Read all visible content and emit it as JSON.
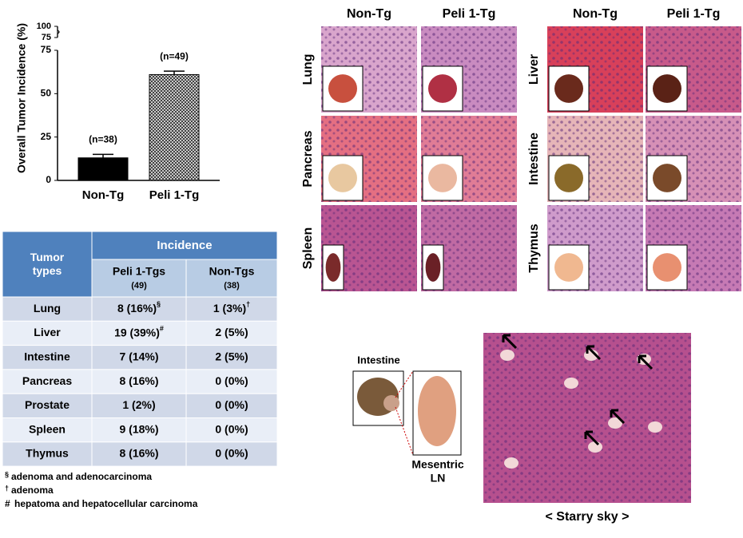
{
  "chart_data": {
    "type": "bar",
    "y_label": "Overall Tumor Incidence (%)",
    "categories": [
      "Non-Tg",
      "Peli 1-Tg"
    ],
    "values": [
      13,
      61
    ],
    "errors": [
      2,
      2
    ],
    "annotations": [
      "(n=38)",
      "(n=49)"
    ],
    "colors": [
      "#000000",
      "#555555"
    ],
    "ylim": [
      0,
      75
    ],
    "yticks": [
      0,
      25,
      50,
      75
    ],
    "break_ylim": [
      75,
      100
    ],
    "break_yticks": [
      75,
      100
    ]
  },
  "table": {
    "header": {
      "row_label": "Tumor types",
      "group": "Incidence",
      "columns": [
        {
          "name": "Peli 1-Tgs",
          "n": "(49)"
        },
        {
          "name": "Non-Tgs",
          "n": "(38)"
        }
      ]
    },
    "rows": [
      [
        "Lung",
        {
          "text": "8 (16%)",
          "sup": "§"
        },
        {
          "text": "1 (3%)",
          "sup": "†"
        }
      ],
      [
        "Liver",
        {
          "text": "19 (39%)",
          "sup": "#"
        },
        "2 (5%)"
      ],
      [
        "Intestine",
        "7 (14%)",
        "2 (5%)"
      ],
      [
        "Pancreas",
        "8 (16%)",
        "0 (0%)"
      ],
      [
        "Prostate",
        "1 (2%)",
        "0 (0%)"
      ],
      [
        "Spleen",
        "9 (18%)",
        "0 (0%)"
      ],
      [
        "Thymus",
        "8 (16%)",
        "0 (0%)"
      ]
    ]
  },
  "footnotes": [
    {
      "sym": "§",
      "text": "adenoma and adenocarcinoma"
    },
    {
      "sym": "†",
      "text": "adenoma"
    },
    {
      "sym": "#",
      "text": "hepatoma and hepatocellular carcinoma"
    }
  ],
  "histology": {
    "groups": [
      {
        "columns": [
          "Non-Tg",
          "Peli 1-Tg"
        ],
        "rows": [
          "Lung",
          "Pancreas",
          "Spleen"
        ]
      },
      {
        "columns": [
          "Non-Tg",
          "Peli 1-Tg"
        ],
        "rows": [
          "Liver",
          "Intestine",
          "Thymus"
        ]
      }
    ]
  },
  "starry": {
    "inset_label": "Intestine",
    "node_label": [
      "Mesentric",
      "LN"
    ],
    "caption": "< Starry sky >"
  }
}
